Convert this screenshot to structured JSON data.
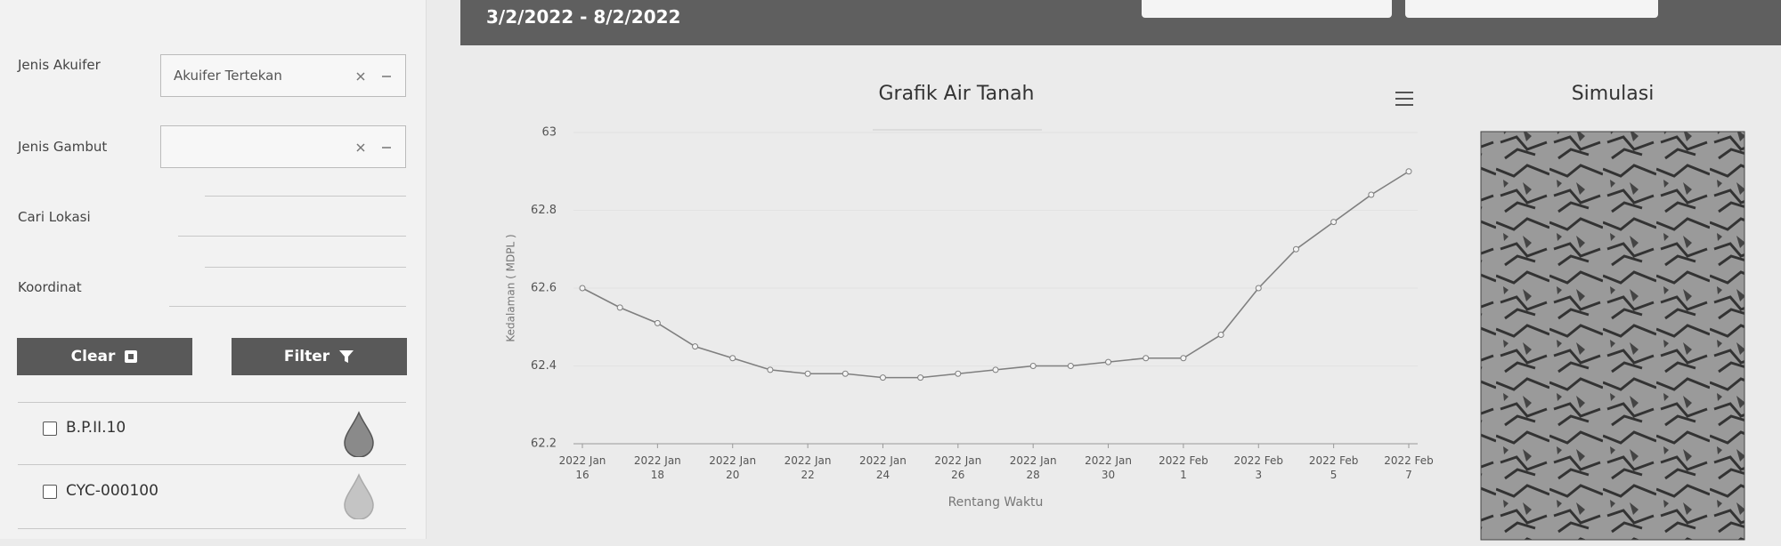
{
  "header": {
    "date_range": "3/2/2022 - 8/2/2022"
  },
  "sidebar": {
    "filters": [
      {
        "label": "Jenis Akuifer",
        "value": "Akuifer Tertekan"
      },
      {
        "label": "Jenis Gambut"
      },
      {
        "label": "Cari Lokasi"
      },
      {
        "label": "Koordinat"
      }
    ],
    "buttons": [
      "Clear",
      "Filter"
    ],
    "stations": [
      "B.P.II.10",
      "CYC-000100"
    ]
  },
  "chart_data": {
    "type": "line",
    "title": "Grafik Air Tanah",
    "x_label": "Rentang Waktu",
    "y_label": "Kedalaman ( MDPL )",
    "x": [
      "2022-01-16",
      "2022-01-17",
      "2022-01-18",
      "2022-01-19",
      "2022-01-20",
      "2022-01-21",
      "2022-01-22",
      "2022-01-23",
      "2022-01-24",
      "2022-01-25",
      "2022-01-26",
      "2022-01-27",
      "2022-01-28",
      "2022-01-29",
      "2022-01-30",
      "2022-01-31",
      "2022-02-01",
      "2022-02-02",
      "2022-02-03",
      "2022-02-04",
      "2022-02-05",
      "2022-02-06",
      "2022-02-07"
    ],
    "series": [
      {
        "color": "#7f7f7f",
        "values": [
          62.6,
          62.55,
          62.51,
          62.45,
          62.42,
          62.39,
          62.38,
          62.38,
          62.37,
          62.37,
          62.38,
          62.39,
          62.4,
          62.4,
          62.41,
          62.42,
          62.42,
          62.48,
          62.6,
          62.7,
          62.77,
          62.84,
          62.9
        ]
      }
    ],
    "xlim": [
      "2022-01-16",
      "2022-02-07"
    ],
    "xticks": [
      {
        "value": "2022-01-16",
        "label": "2022 Jan 16"
      },
      {
        "value": "2022-01-18",
        "label": "2022 Jan 18"
      },
      {
        "value": "2022-01-20",
        "label": "2022 Jan 20"
      },
      {
        "value": "2022-01-22",
        "label": "2022 Jan 22"
      },
      {
        "value": "2022-01-24",
        "label": "2022 Jan 24"
      },
      {
        "value": "2022-01-26",
        "label": "2022 Jan 26"
      },
      {
        "value": "2022-01-28",
        "label": "2022 Jan 28"
      },
      {
        "value": "2022-01-30",
        "label": "2022 Jan 30"
      },
      {
        "value": "2022-02-01",
        "label": "2022 Feb 1"
      },
      {
        "value": "2022-02-03",
        "label": "2022 Feb 3"
      },
      {
        "value": "2022-02-05",
        "label": "2022 Feb 5"
      },
      {
        "value": "2022-02-07",
        "label": "2022 Feb 7"
      }
    ],
    "ylim": [
      62.2,
      63
    ],
    "yticks": [
      62.2,
      62.4,
      62.6,
      62.8,
      63
    ],
    "grid": true
  },
  "simulation": {
    "title": "Simulasi"
  }
}
